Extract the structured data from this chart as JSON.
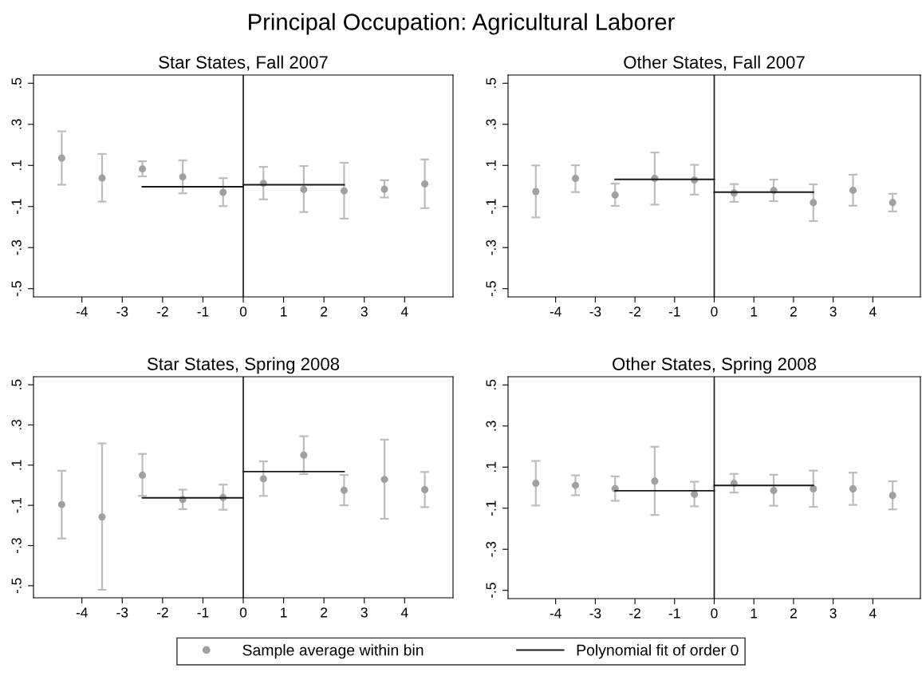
{
  "chart_data": [
    {
      "type": "scatter",
      "title": "Star States, Fall 2007",
      "annotations": [
        "Principal Occupation: Agricultural Laborer"
      ],
      "xlim": [
        -5.2,
        5.2
      ],
      "ylim": [
        -0.54,
        0.54
      ],
      "xticks": [
        -4,
        -3,
        -2,
        -1,
        0,
        1,
        2,
        3,
        4
      ],
      "yticks": [
        {
          "value": 0.5,
          "label": ".5"
        },
        {
          "value": 0.3,
          "label": ".3"
        },
        {
          "value": 0.1,
          "label": ".1"
        },
        {
          "value": -0.1,
          "label": "-.1"
        },
        {
          "value": -0.3,
          "label": "-.3"
        },
        {
          "value": -0.5,
          "label": "-.5"
        }
      ],
      "legend": "bottom",
      "ref_lines": [
        {
          "axis": "x",
          "value": 0,
          "color": "#1a1a1a"
        }
      ],
      "series": [
        {
          "name": "Sample average within bin",
          "marker": "circle",
          "color": "#a0a0a0",
          "x": [
            -4.5,
            -3.5,
            -2.5,
            -1.5,
            -0.5,
            0.5,
            1.5,
            2.5,
            3.5,
            4.5
          ],
          "values": [
            0.136,
            0.039,
            0.083,
            0.044,
            -0.031,
            0.013,
            -0.017,
            -0.024,
            -0.016,
            0.01
          ],
          "errors": [
            [
              0.006,
              0.266
            ],
            [
              -0.076,
              0.156
            ],
            [
              0.047,
              0.12
            ],
            [
              -0.036,
              0.125
            ],
            [
              -0.098,
              0.038
            ],
            [
              -0.065,
              0.093
            ],
            [
              -0.127,
              0.097
            ],
            [
              -0.159,
              0.113
            ],
            [
              -0.056,
              0.028
            ],
            [
              -0.108,
              0.129
            ]
          ]
        },
        {
          "type": "line",
          "name": "Polynomial fit of order 0",
          "color": "#1a1a1a",
          "x": [
            -2.5,
            0
          ],
          "values": [
            -0.004,
            -0.004
          ]
        },
        {
          "type": "line",
          "color": "#1a1a1a",
          "x": [
            0,
            2.5
          ],
          "values": [
            0.006,
            0.006
          ]
        }
      ]
    },
    {
      "type": "scatter",
      "title": "Other States, Fall 2007",
      "xlim": [
        -5.2,
        5.2
      ],
      "ylim": [
        -0.54,
        0.54
      ],
      "xticks": [
        -4,
        -3,
        -2,
        -1,
        0,
        1,
        2,
        3,
        4
      ],
      "yticks": [
        {
          "value": 0.5,
          "label": ".5"
        },
        {
          "value": 0.3,
          "label": ".3"
        },
        {
          "value": 0.1,
          "label": ".1"
        },
        {
          "value": -0.1,
          "label": "-.1"
        },
        {
          "value": -0.3,
          "label": "-.3"
        },
        {
          "value": -0.5,
          "label": "-.5"
        }
      ],
      "ref_lines": [
        {
          "axis": "x",
          "value": 0,
          "color": "#1a1a1a"
        }
      ],
      "series": [
        {
          "marker": "circle",
          "color": "#a0a0a0",
          "x": [
            -4.5,
            -3.5,
            -2.5,
            -1.5,
            -0.5,
            0.5,
            1.5,
            2.5,
            3.5,
            4.5
          ],
          "values": [
            -0.027,
            0.037,
            -0.044,
            0.037,
            0.029,
            -0.034,
            -0.022,
            -0.081,
            -0.021,
            -0.081
          ],
          "errors": [
            [
              -0.153,
              0.1
            ],
            [
              -0.03,
              0.101
            ],
            [
              -0.097,
              0.011
            ],
            [
              -0.091,
              0.163
            ],
            [
              -0.042,
              0.103
            ],
            [
              -0.077,
              0.009
            ],
            [
              -0.074,
              0.031
            ],
            [
              -0.171,
              0.008
            ],
            [
              -0.096,
              0.055
            ],
            [
              -0.124,
              -0.038
            ]
          ]
        },
        {
          "type": "line",
          "color": "#1a1a1a",
          "x": [
            -2.5,
            0
          ],
          "values": [
            0.032,
            0.032
          ]
        },
        {
          "type": "line",
          "color": "#1a1a1a",
          "x": [
            0,
            2.5
          ],
          "values": [
            -0.03,
            -0.03
          ]
        }
      ]
    },
    {
      "type": "scatter",
      "title": "Star States, Spring 2008",
      "xlim": [
        -5.2,
        5.2
      ],
      "ylim": [
        -0.56,
        0.54
      ],
      "xticks": [
        -4,
        -3,
        -2,
        -1,
        0,
        1,
        2,
        3,
        4
      ],
      "yticks": [
        {
          "value": 0.5,
          "label": ".5"
        },
        {
          "value": 0.3,
          "label": ".3"
        },
        {
          "value": 0.1,
          "label": ".1"
        },
        {
          "value": -0.1,
          "label": "-.1"
        },
        {
          "value": -0.3,
          "label": "-.3"
        },
        {
          "value": -0.5,
          "label": "-.5"
        }
      ],
      "ref_lines": [
        {
          "axis": "x",
          "value": 0,
          "color": "#1a1a1a"
        }
      ],
      "series": [
        {
          "marker": "circle",
          "color": "#a0a0a0",
          "x": [
            -4.5,
            -3.5,
            -2.5,
            -1.5,
            -0.5,
            0.5,
            1.5,
            2.5,
            3.5,
            4.5
          ],
          "values": [
            -0.096,
            -0.158,
            0.05,
            -0.071,
            -0.061,
            0.032,
            0.15,
            -0.025,
            0.029,
            -0.022
          ],
          "errors": [
            [
              -0.265,
              0.072
            ],
            [
              -0.52,
              0.208
            ],
            [
              -0.053,
              0.156
            ],
            [
              -0.119,
              -0.022
            ],
            [
              -0.122,
              0.003
            ],
            [
              -0.053,
              0.119
            ],
            [
              0.056,
              0.244
            ],
            [
              -0.1,
              0.051
            ],
            [
              -0.167,
              0.227
            ],
            [
              -0.109,
              0.066
            ]
          ]
        },
        {
          "type": "line",
          "color": "#1a1a1a",
          "x": [
            -2.5,
            0
          ],
          "values": [
            -0.063,
            -0.063
          ]
        },
        {
          "type": "line",
          "color": "#1a1a1a",
          "x": [
            0,
            2.5
          ],
          "values": [
            0.068,
            0.068
          ]
        }
      ]
    },
    {
      "type": "scatter",
      "title": "Other States, Spring 2008",
      "xlim": [
        -5.2,
        5.2
      ],
      "ylim": [
        -0.54,
        0.54
      ],
      "xticks": [
        -4,
        -3,
        -2,
        -1,
        0,
        1,
        2,
        3,
        4
      ],
      "yticks": [
        {
          "value": 0.5,
          "label": ".5"
        },
        {
          "value": 0.3,
          "label": ".3"
        },
        {
          "value": 0.1,
          "label": ".1"
        },
        {
          "value": -0.1,
          "label": "-.1"
        },
        {
          "value": -0.3,
          "label": "-.3"
        },
        {
          "value": -0.5,
          "label": "-.5"
        }
      ],
      "ref_lines": [
        {
          "axis": "x",
          "value": 0,
          "color": "#1a1a1a"
        }
      ],
      "series": [
        {
          "marker": "circle",
          "color": "#a0a0a0",
          "x": [
            -4.5,
            -3.5,
            -2.5,
            -1.5,
            -0.5,
            0.5,
            1.5,
            2.5,
            3.5,
            4.5
          ],
          "values": [
            0.021,
            0.011,
            -0.005,
            0.032,
            -0.032,
            0.021,
            -0.014,
            -0.006,
            -0.006,
            -0.038
          ],
          "errors": [
            [
              -0.087,
              0.13
            ],
            [
              -0.037,
              0.06
            ],
            [
              -0.064,
              0.055
            ],
            [
              -0.133,
              0.199
            ],
            [
              -0.091,
              0.029
            ],
            [
              -0.024,
              0.067
            ],
            [
              -0.088,
              0.063
            ],
            [
              -0.094,
              0.083
            ],
            [
              -0.084,
              0.073
            ],
            [
              -0.106,
              0.031
            ]
          ]
        },
        {
          "type": "line",
          "color": "#1a1a1a",
          "x": [
            -2.5,
            0
          ],
          "values": [
            -0.015,
            -0.015
          ]
        },
        {
          "type": "line",
          "color": "#1a1a1a",
          "x": [
            0,
            2.5
          ],
          "values": [
            0.011,
            0.011
          ]
        }
      ]
    }
  ]
}
